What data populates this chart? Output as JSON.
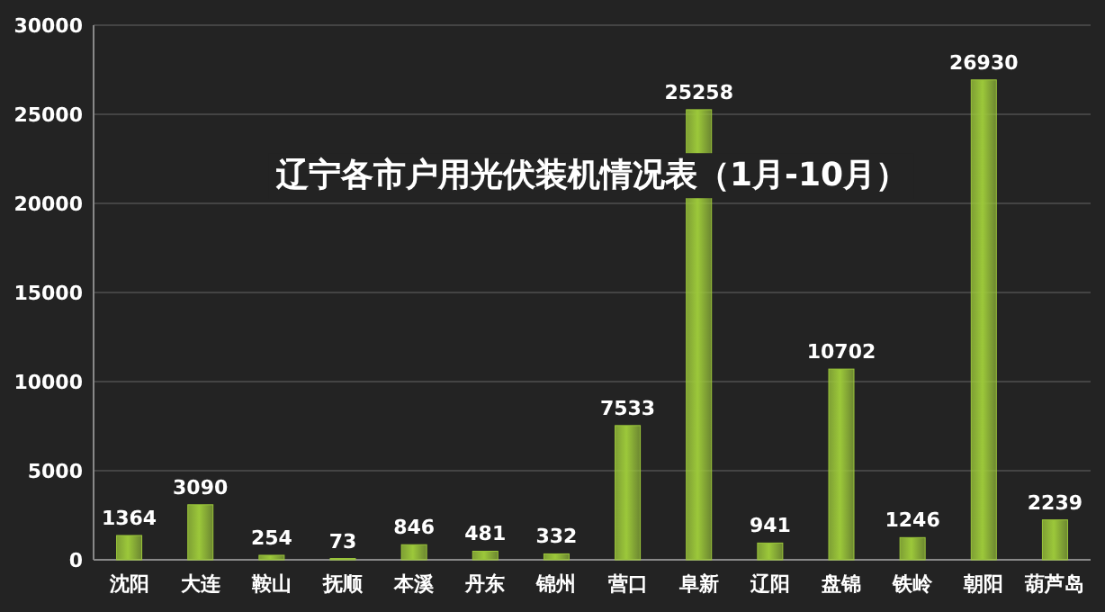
{
  "chart_data": {
    "type": "bar",
    "title": "辽宁各市户用光伏装机情况表（1月-10月）",
    "categories": [
      "沈阳",
      "大连",
      "鞍山",
      "抚顺",
      "本溪",
      "丹东",
      "锦州",
      "营口",
      "阜新",
      "辽阳",
      "盘锦",
      "铁岭",
      "朝阳",
      "葫芦岛"
    ],
    "values": [
      1364,
      3090,
      254,
      73,
      846,
      481,
      332,
      7533,
      25258,
      941,
      10702,
      1246,
      26930,
      2239
    ],
    "color": "#9cc83a",
    "ylim": [
      0,
      30000
    ],
    "yticks": [
      0,
      5000,
      10000,
      15000,
      20000,
      25000,
      30000
    ],
    "grid": "y",
    "data_labels": true
  }
}
